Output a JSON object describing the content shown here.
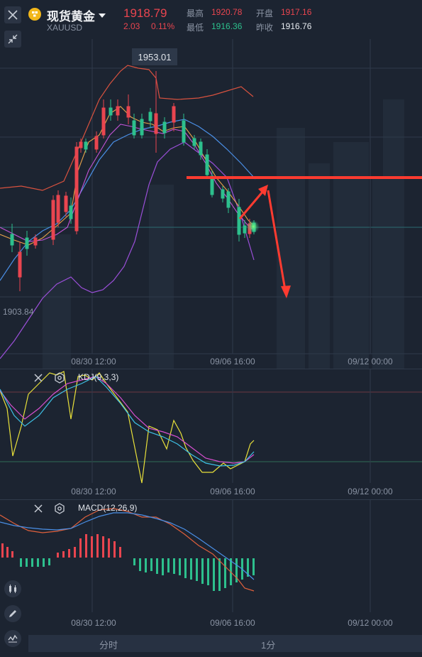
{
  "header": {
    "title": "现货黄金",
    "symbol": "XAUUSD",
    "price": "1918.79",
    "change": "2.03",
    "change_pct": "0.11%",
    "high_label": "最高",
    "high": "1920.78",
    "low_label": "最低",
    "low": "1916.36",
    "open_label": "开盘",
    "open": "1917.16",
    "prev_close_label": "昨收",
    "prev_close": "1916.76"
  },
  "main_chart": {
    "max_label": "1953.01",
    "min_label": "1903.84",
    "x_ticks": [
      "08/30 12:00",
      "09/06 16:00",
      "09/12 00:00"
    ]
  },
  "kdj": {
    "label": "KDJ(9,3,3)",
    "x_ticks": [
      "08/30 12:00",
      "09/06 16:00",
      "09/12 00:00"
    ]
  },
  "macd": {
    "label": "MACD(12,26,9)",
    "x_ticks": [
      "08/30 12:00",
      "09/06 16:00",
      "09/12 00:00"
    ]
  },
  "bottom_tabs": [
    "分时",
    "1分"
  ],
  "colors": {
    "up": "#e9454f",
    "down": "#2dc08d",
    "background": "#1c2431",
    "annotation": "#ff3b30"
  }
}
